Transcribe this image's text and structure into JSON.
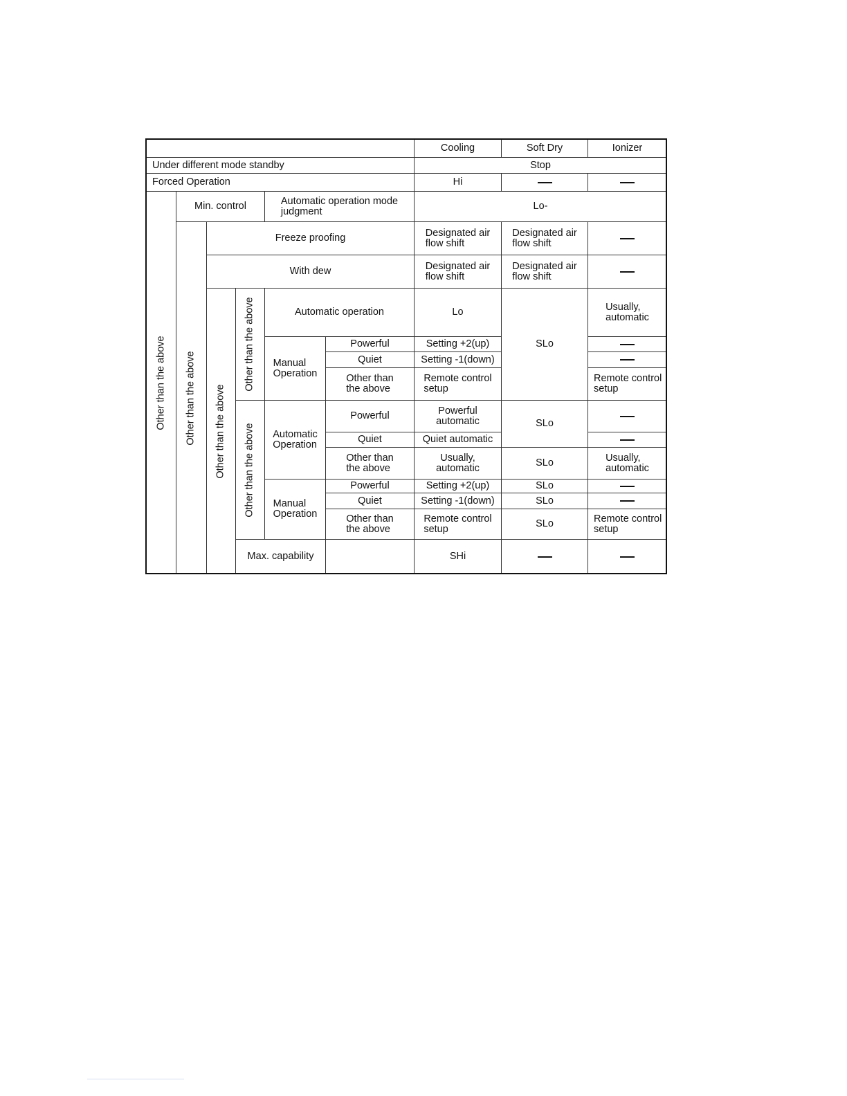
{
  "header": {
    "corner": "",
    "cooling": "Cooling",
    "soft_dry": "Soft Dry",
    "ionizer": "Ionizer"
  },
  "standby": {
    "label": "Under different mode standby",
    "value": "Stop"
  },
  "forced": {
    "label": "Forced Operation",
    "cooling": "Hi",
    "soft_dry": "—",
    "ionizer": "—"
  },
  "vertical": {
    "level1": "Other than the above",
    "level2": "Other than the above",
    "level3": "Other than the above",
    "level4a": "Other than the above",
    "level4b": "Other than the above"
  },
  "min_control": {
    "label": "Min. control",
    "sub": "Automatic operation mode\njudgment",
    "value": "Lo-"
  },
  "freeze": {
    "label": "Freeze proofing",
    "cooling": "Designated air\nflow shift",
    "soft_dry": "Designated air\nflow shift",
    "ionizer": "—"
  },
  "dew": {
    "label": "With dew",
    "cooling": "Designated air\nflow shift",
    "soft_dry": "Designated air\nflow shift",
    "ionizer": "—"
  },
  "group_a": {
    "auto": {
      "label": "Automatic operation",
      "cooling": "Lo",
      "ionizer": "Usually,\nautomatic"
    },
    "soft_dry": "SLo",
    "manual": {
      "label": "Manual\nOperation",
      "rows": [
        {
          "label": "Powerful",
          "cooling": "Setting +2(up)",
          "ionizer": "—"
        },
        {
          "label": "Quiet",
          "cooling": "Setting -1(down)",
          "ionizer": "—"
        },
        {
          "label": "Other than\nthe above",
          "cooling": "Remote control\nsetup",
          "ionizer": "Remote control\nsetup"
        }
      ]
    }
  },
  "group_b": {
    "auto": {
      "label": "Automatic\nOperation",
      "soft_dry_shared": "SLo",
      "rows": [
        {
          "label": "Powerful",
          "cooling": "Powerful\nautomatic",
          "ionizer": "—"
        },
        {
          "label": "Quiet",
          "cooling": "Quiet automatic",
          "ionizer": "—"
        },
        {
          "label": "Other than\nthe above",
          "cooling": "Usually,\nautomatic",
          "soft_dry": "SLo",
          "ionizer": "Usually,\nautomatic"
        }
      ]
    },
    "manual": {
      "label": "Manual\nOperation",
      "rows": [
        {
          "label": "Powerful",
          "cooling": "Setting +2(up)",
          "soft_dry": "SLo",
          "ionizer": "—"
        },
        {
          "label": "Quiet",
          "cooling": "Setting -1(down)",
          "soft_dry": "SLo",
          "ionizer": "—"
        },
        {
          "label": "Other than\nthe above",
          "cooling": "Remote control\nsetup",
          "soft_dry": "SLo",
          "ionizer": "Remote control\nsetup"
        }
      ]
    }
  },
  "max": {
    "label": "Max. capability",
    "sub": "",
    "cooling": "SHi",
    "soft_dry": "—",
    "ionizer": "—"
  }
}
